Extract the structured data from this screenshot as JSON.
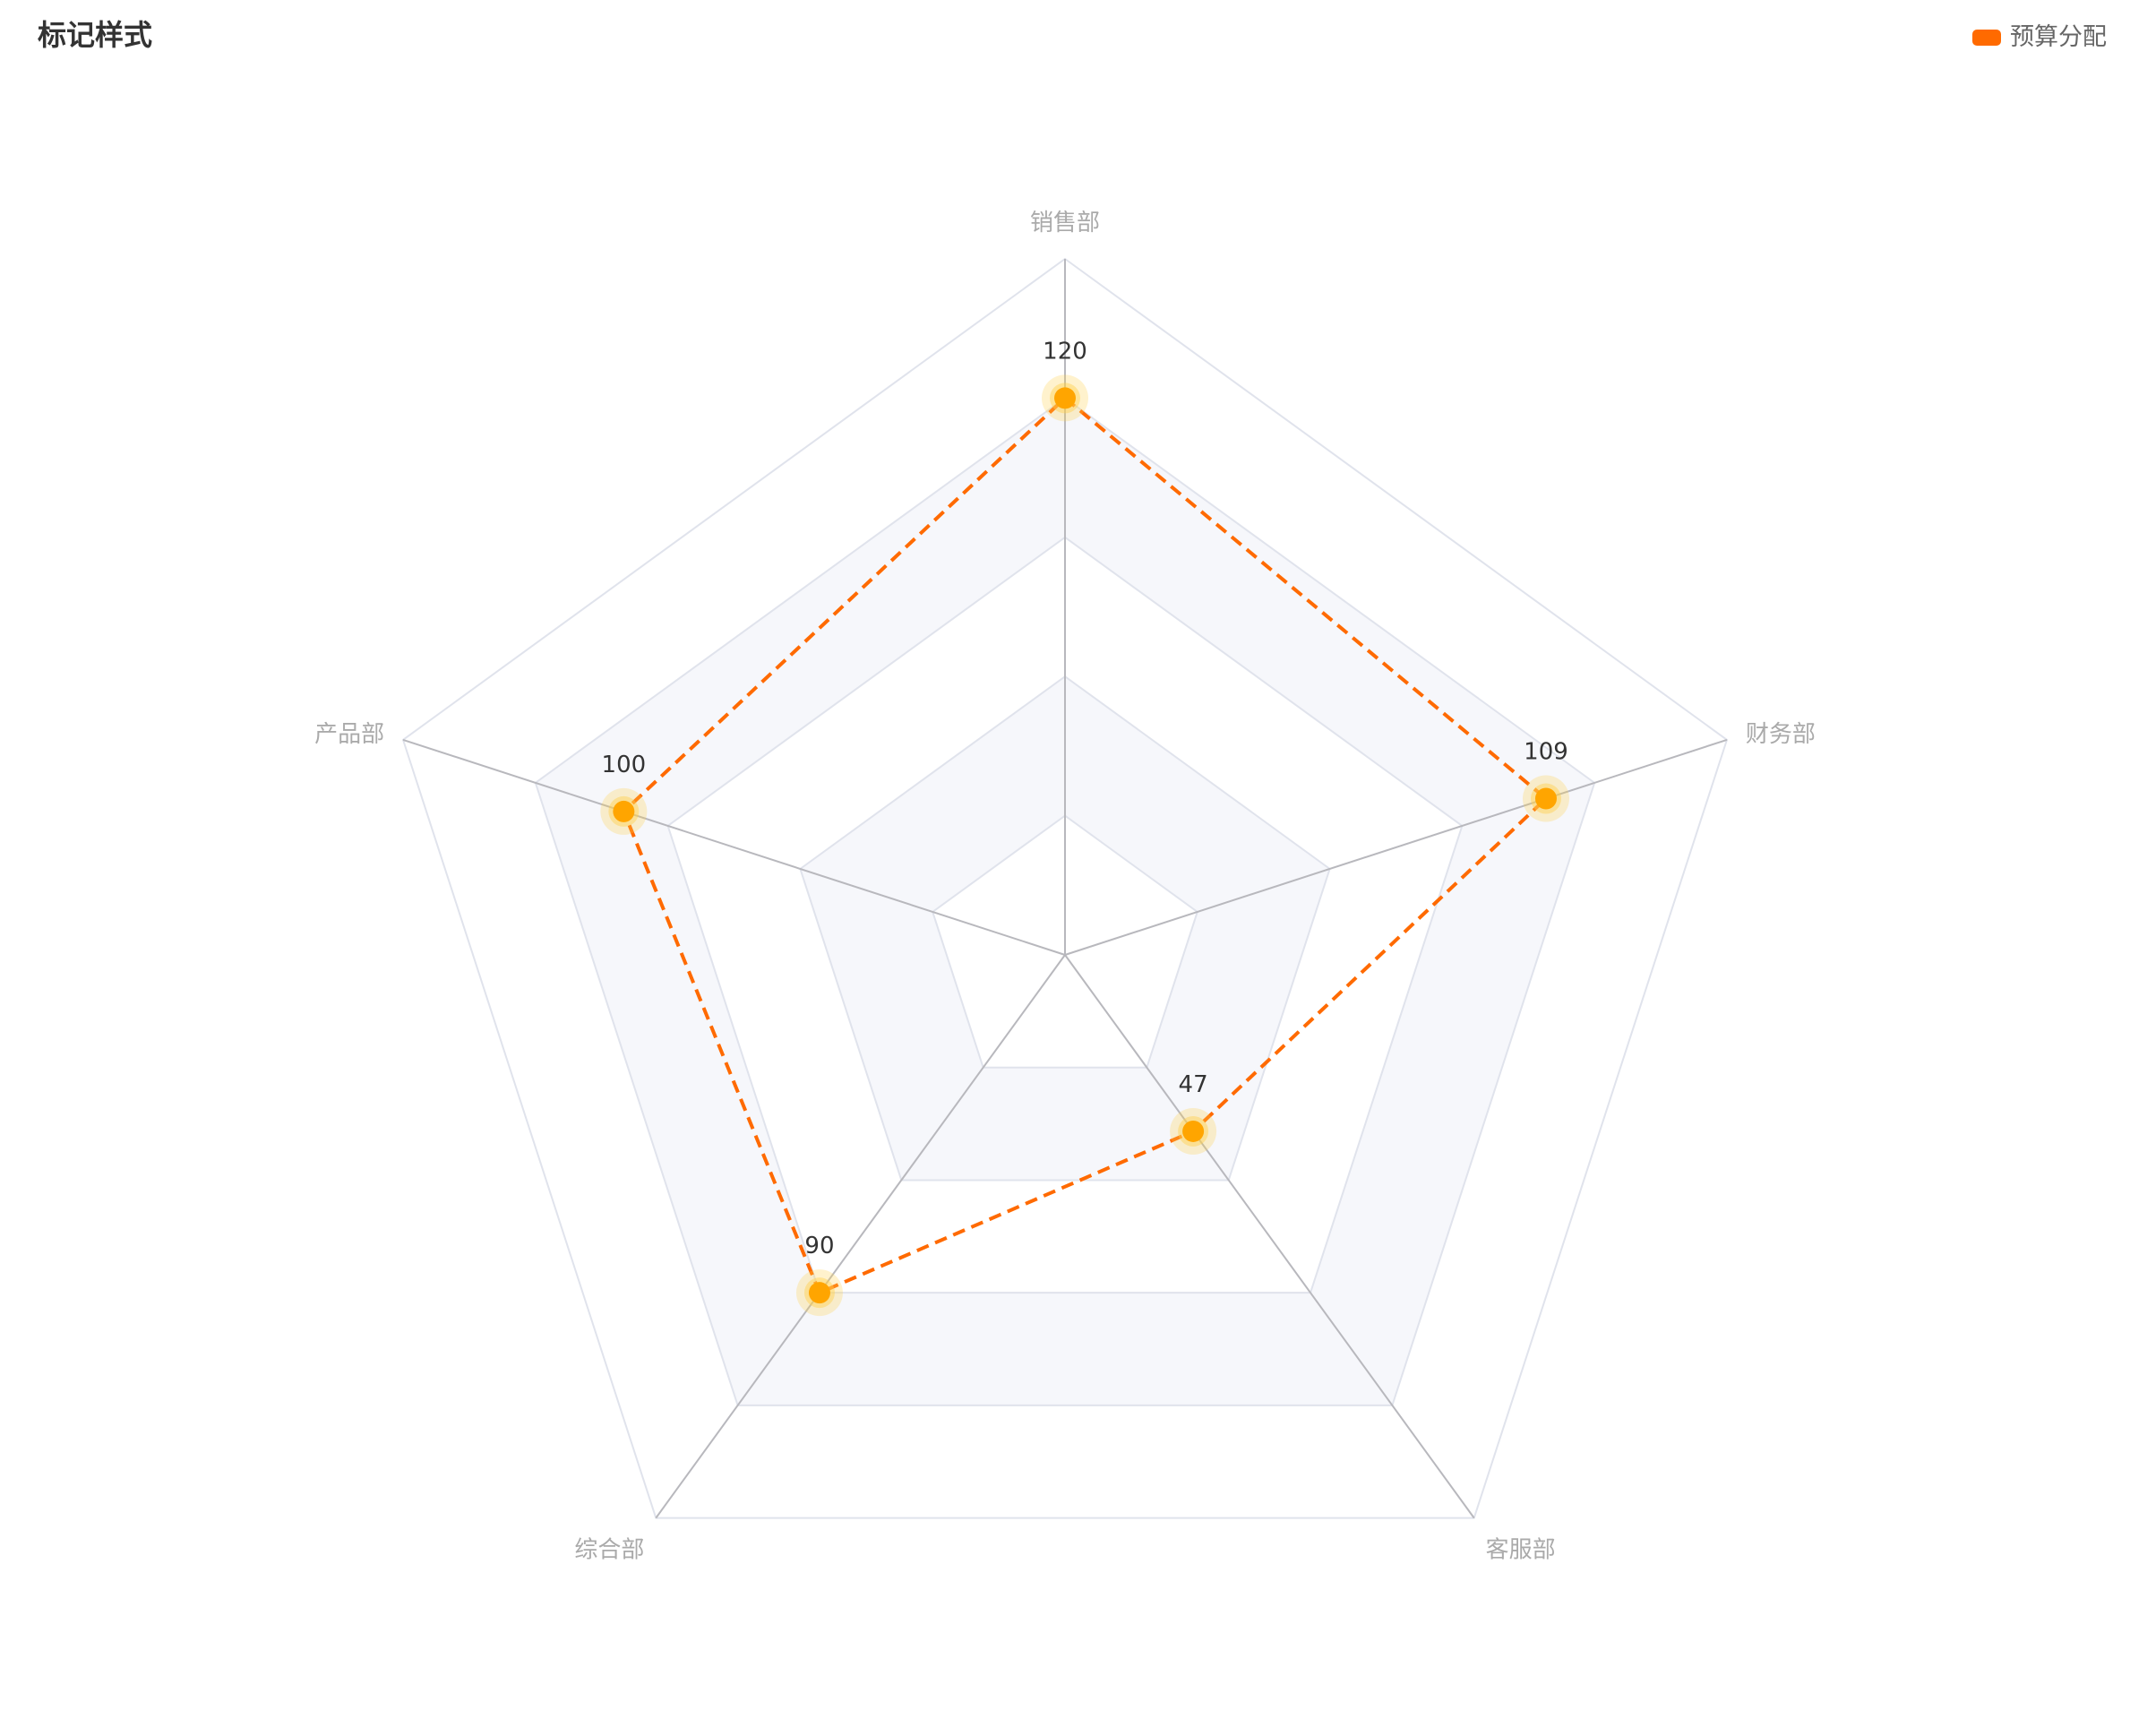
{
  "title": "标记样式",
  "legend": {
    "label": "预算分配",
    "color": "#ff6a00"
  },
  "colors": {
    "line": "#ff6a00",
    "marker": "#ffa500",
    "marker_glow": "#ffd04d",
    "split_line": "#e0e3ec",
    "axis_line": "#b8b8bd",
    "split_area_fill": "#f6f7fb"
  },
  "chart_data": {
    "type": "radar",
    "max": 150,
    "split_number": 5,
    "indicators": [
      "销售部",
      "财务部",
      "客服部",
      "综合部",
      "产品部"
    ],
    "series": [
      {
        "name": "预算分配",
        "values": [
          120,
          109,
          47,
          90,
          100
        ],
        "line_style": "dashed",
        "marker": "circle"
      }
    ],
    "legend_position": "top-right"
  }
}
